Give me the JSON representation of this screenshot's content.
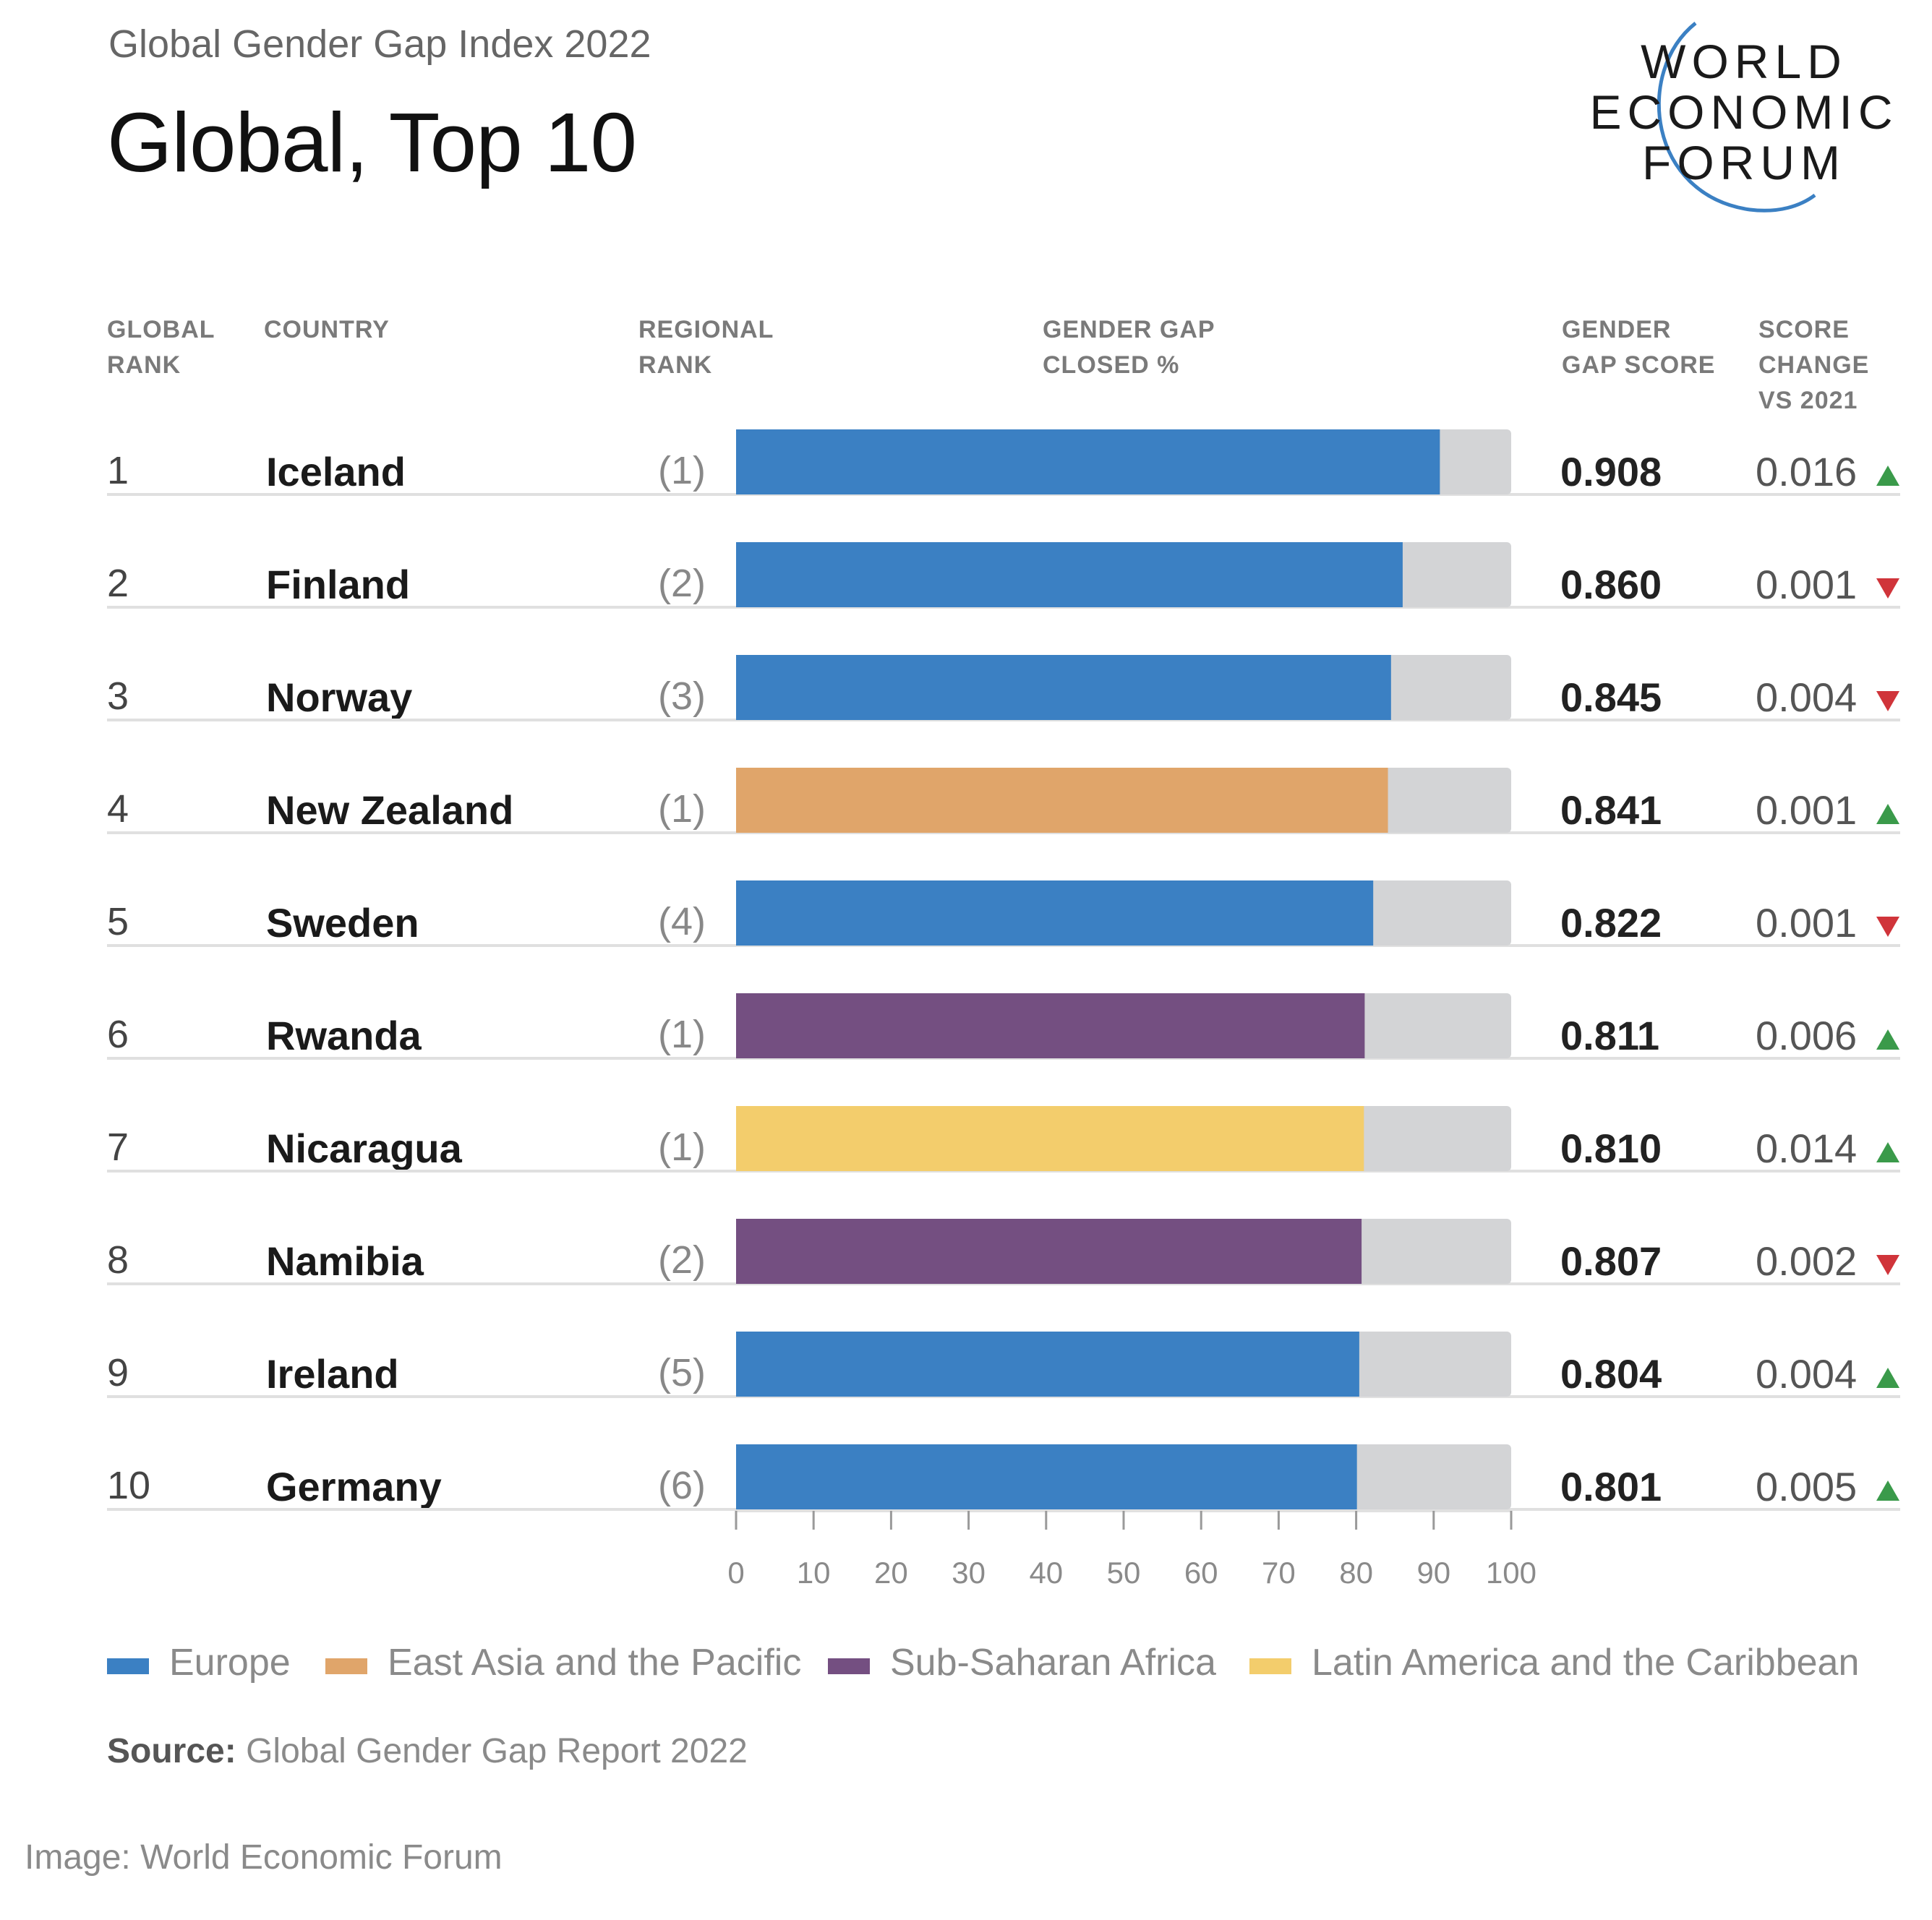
{
  "header": {
    "subtitle": "Global Gender Gap Index 2022",
    "title": "Global, Top 10",
    "logo_lines": [
      "WORLD",
      "ECONOMIC",
      "FORUM"
    ]
  },
  "columns": {
    "global_rank": [
      "GLOBAL",
      "RANK"
    ],
    "country": [
      "COUNTRY"
    ],
    "regional_rank": [
      "REGIONAL",
      "RANK"
    ],
    "gap_closed": [
      "GENDER GAP",
      "CLOSED %"
    ],
    "gap_score": [
      "GENDER",
      "GAP SCORE"
    ],
    "score_change": [
      "SCORE",
      "CHANGE",
      "VS 2021"
    ]
  },
  "colors": {
    "Europe": "#3b80c3",
    "East Asia and the Pacific": "#e0a56a",
    "Sub-Saharan Africa": "#744f81",
    "Latin America and the Caribbean": "#f3cd6c",
    "remainder": "#d3d4d6",
    "up": "#3a9a4a",
    "down": "#d0343a"
  },
  "chart_data": {
    "type": "bar",
    "orientation": "horizontal",
    "xlim": [
      0,
      100
    ],
    "xticks": [
      0,
      10,
      20,
      30,
      40,
      50,
      60,
      70,
      80,
      90,
      100
    ],
    "rows": [
      {
        "rank": "1",
        "country": "Iceland",
        "regional_rank": "(1)",
        "region": "Europe",
        "score": "0.908",
        "value": 90.8,
        "change": "0.016",
        "direction": "up"
      },
      {
        "rank": "2",
        "country": "Finland",
        "regional_rank": "(2)",
        "region": "Europe",
        "score": "0.860",
        "value": 86.0,
        "change": "0.001",
        "direction": "down"
      },
      {
        "rank": "3",
        "country": "Norway",
        "regional_rank": "(3)",
        "region": "Europe",
        "score": "0.845",
        "value": 84.5,
        "change": "0.004",
        "direction": "down"
      },
      {
        "rank": "4",
        "country": "New Zealand",
        "regional_rank": "(1)",
        "region": "East Asia and the Pacific",
        "score": "0.841",
        "value": 84.1,
        "change": "0.001",
        "direction": "up"
      },
      {
        "rank": "5",
        "country": "Sweden",
        "regional_rank": "(4)",
        "region": "Europe",
        "score": "0.822",
        "value": 82.2,
        "change": "0.001",
        "direction": "down"
      },
      {
        "rank": "6",
        "country": "Rwanda",
        "regional_rank": "(1)",
        "region": "Sub-Saharan Africa",
        "score": "0.811",
        "value": 81.1,
        "change": "0.006",
        "direction": "up"
      },
      {
        "rank": "7",
        "country": "Nicaragua",
        "regional_rank": "(1)",
        "region": "Latin America and the Caribbean",
        "score": "0.810",
        "value": 81.0,
        "change": "0.014",
        "direction": "up"
      },
      {
        "rank": "8",
        "country": "Namibia",
        "regional_rank": "(2)",
        "region": "Sub-Saharan Africa",
        "score": "0.807",
        "value": 80.7,
        "change": "0.002",
        "direction": "down"
      },
      {
        "rank": "9",
        "country": "Ireland",
        "regional_rank": "(5)",
        "region": "Europe",
        "score": "0.804",
        "value": 80.4,
        "change": "0.004",
        "direction": "up"
      },
      {
        "rank": "10",
        "country": "Germany",
        "regional_rank": "(6)",
        "region": "Europe",
        "score": "0.801",
        "value": 80.1,
        "change": "0.005",
        "direction": "up"
      }
    ],
    "legend": [
      "Europe",
      "East Asia and the Pacific",
      "Sub-Saharan Africa",
      "Latin America and the Caribbean"
    ],
    "legend_position": "bottom"
  },
  "footer": {
    "source_label": "Source:",
    "source_text": "Global Gender Gap Report 2022",
    "credit": "Image: World Economic Forum"
  }
}
